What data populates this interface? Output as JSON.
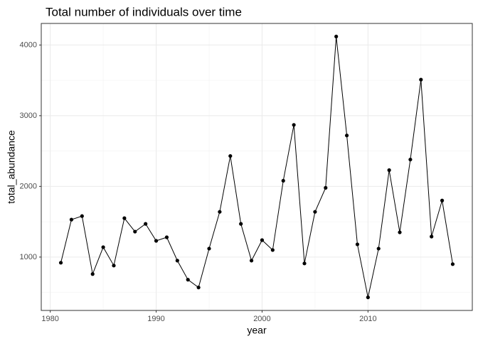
{
  "chart_data": {
    "type": "line",
    "title": "Total number of individuals over time",
    "x_label": "year",
    "y_label": "total_abundance",
    "x": [
      1981,
      1982,
      1983,
      1984,
      1985,
      1986,
      1987,
      1988,
      1989,
      1990,
      1991,
      1992,
      1993,
      1994,
      1995,
      1996,
      1997,
      1998,
      1999,
      2000,
      2001,
      2002,
      2003,
      2004,
      2005,
      2006,
      2007,
      2008,
      2009,
      2010,
      2011,
      2012,
      2013,
      2014,
      2015,
      2016,
      2017,
      2018
    ],
    "values": [
      920,
      1530,
      1580,
      760,
      1140,
      880,
      1550,
      1360,
      1470,
      1230,
      1280,
      950,
      680,
      570,
      1120,
      1640,
      2430,
      1470,
      950,
      1240,
      1100,
      2080,
      2870,
      910,
      1640,
      1980,
      4120,
      2720,
      1180,
      430,
      1120,
      2230,
      1350,
      2380,
      3510,
      1290,
      1800,
      900
    ],
    "color": "#000000",
    "xlim": [
      1979.15,
      2019.85
    ],
    "xticks": [
      1980,
      1990,
      2000,
      2010
    ],
    "ylim": [
      245,
      4305
    ],
    "yticks": [
      1000,
      2000,
      3000,
      4000
    ],
    "grid": true
  }
}
